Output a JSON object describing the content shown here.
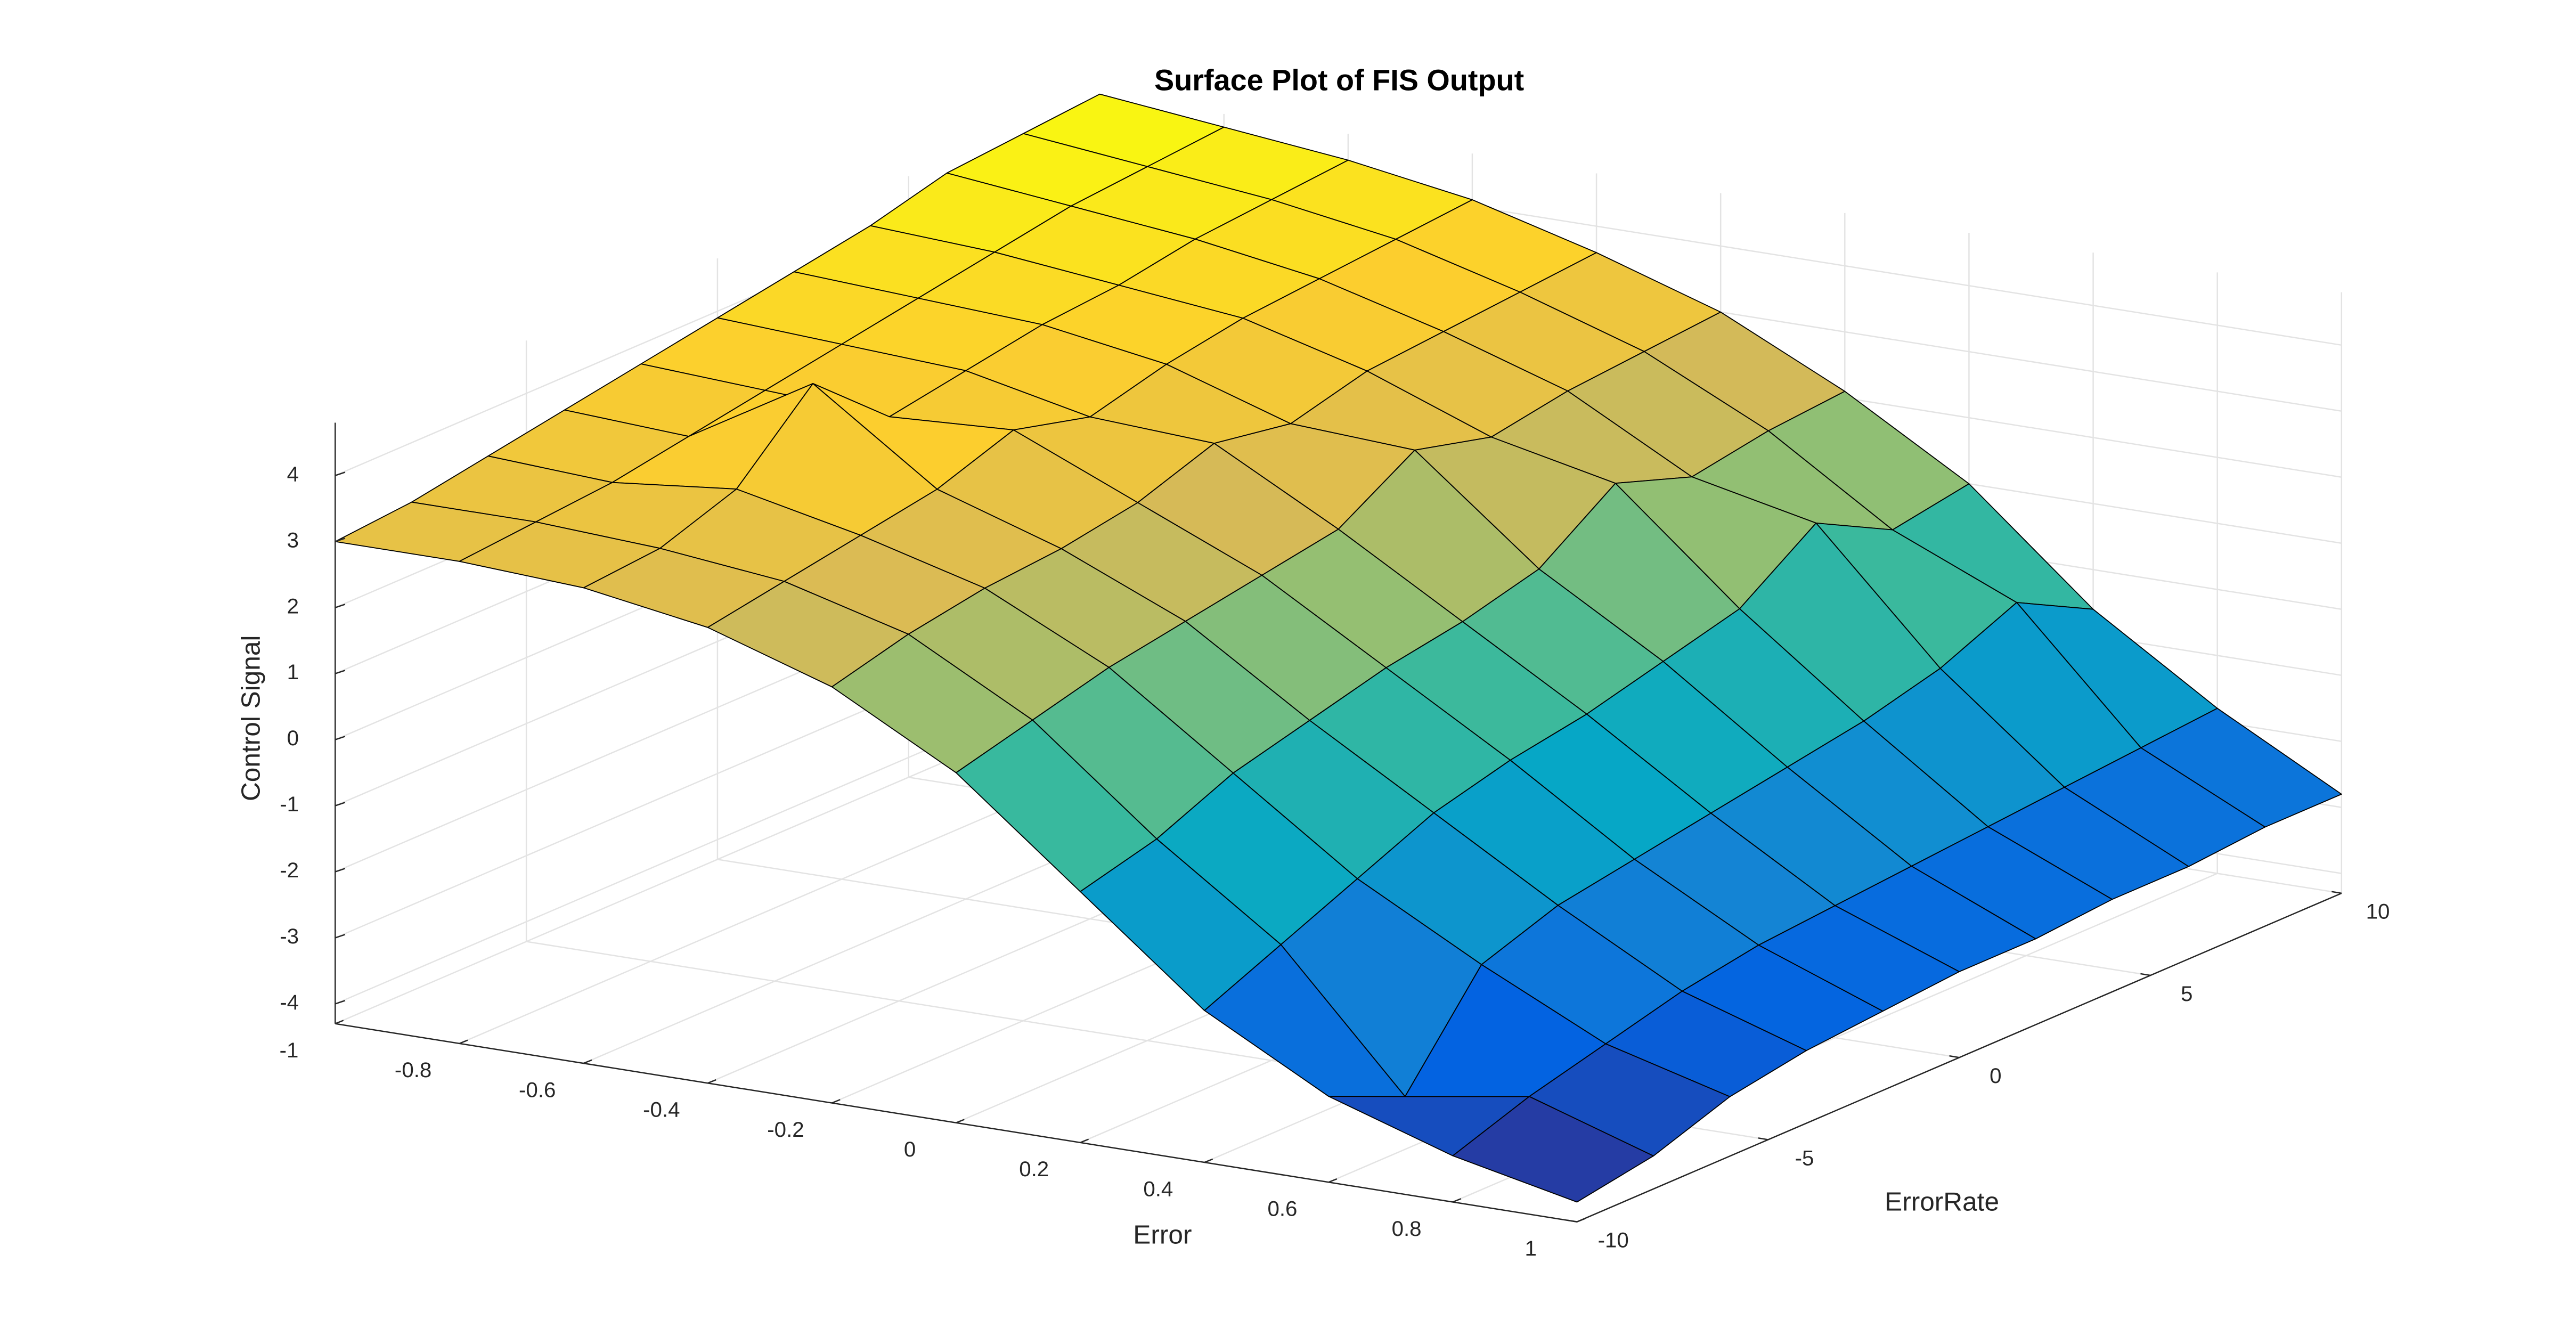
{
  "chart_data": {
    "type": "surface",
    "title": "Surface Plot of FIS Output",
    "x_label": "Error",
    "y_label": "ErrorRate",
    "z_label": "Control Signal",
    "x": [
      -1,
      -0.8,
      -0.6,
      -0.4,
      -0.2,
      0,
      0.2,
      0.4,
      0.6,
      0.8,
      1
    ],
    "y": [
      -10,
      -8,
      -6,
      -4,
      -2,
      0,
      2,
      4,
      6,
      8,
      10
    ],
    "z": [
      [
        3.0,
        3.0,
        2.9,
        2.6,
        2.0,
        1.0,
        -0.5,
        -2.0,
        -3.0,
        -3.6,
        -4.0
      ],
      [
        3.1,
        3.1,
        3.0,
        2.8,
        2.3,
        1.3,
        -0.2,
        -1.5,
        -3.5,
        -3.2,
        -3.8
      ],
      [
        3.3,
        3.2,
        3.4,
        3.0,
        2.5,
        1.6,
        0.3,
        -1.0,
        -2.0,
        -2.9,
        -3.4
      ],
      [
        3.5,
        3.4,
        4.5,
        3.2,
        2.6,
        1.8,
        0.6,
        -0.5,
        -1.6,
        -2.6,
        -3.2
      ],
      [
        3.7,
        3.6,
        3.5,
        3.6,
        2.8,
        2.0,
        0.9,
        -0.2,
        -1.4,
        -2.4,
        -3.1
      ],
      [
        3.9,
        3.8,
        3.7,
        3.3,
        3.2,
        2.2,
        1.1,
        0.0,
        -1.2,
        -2.3,
        -3.0
      ],
      [
        4.1,
        4.0,
        3.9,
        3.6,
        3.0,
        2.9,
        1.4,
        0.3,
        -1.0,
        -2.2,
        -3.0
      ],
      [
        4.3,
        4.2,
        4.0,
        3.8,
        3.3,
        2.6,
        2.2,
        0.6,
        -0.8,
        -2.1,
        -2.9
      ],
      [
        4.6,
        4.4,
        4.2,
        3.9,
        3.4,
        2.8,
        1.8,
        1.4,
        -0.5,
        -2.0,
        -2.9
      ],
      [
        4.7,
        4.5,
        4.3,
        4.0,
        3.5,
        2.9,
        2.0,
        0.8,
        0.0,
        -1.9,
        -2.8
      ],
      [
        4.8,
        4.6,
        4.4,
        4.1,
        3.6,
        3.0,
        2.1,
        1.0,
        -0.6,
        -1.8,
        -2.8
      ]
    ],
    "xlim": [
      -1,
      1
    ],
    "ylim": [
      -10,
      10
    ],
    "zlim": [
      -4.3,
      4.8
    ],
    "xticks": [
      -1,
      -0.8,
      -0.6,
      -0.4,
      -0.2,
      0,
      0.2,
      0.4,
      0.6,
      0.8,
      1
    ],
    "yticks": [
      -10,
      -5,
      0,
      5,
      10
    ],
    "zticks": [
      -4,
      -3,
      -2,
      -1,
      0,
      1,
      2,
      3,
      4
    ],
    "grid": true,
    "colormap": [
      "#352a87",
      "#0363e1",
      "#1485d4",
      "#06a7c6",
      "#38b99e",
      "#92bf73",
      "#d9ba56",
      "#fcce2e",
      "#f9fb0e"
    ],
    "edge_color": "#000000"
  }
}
